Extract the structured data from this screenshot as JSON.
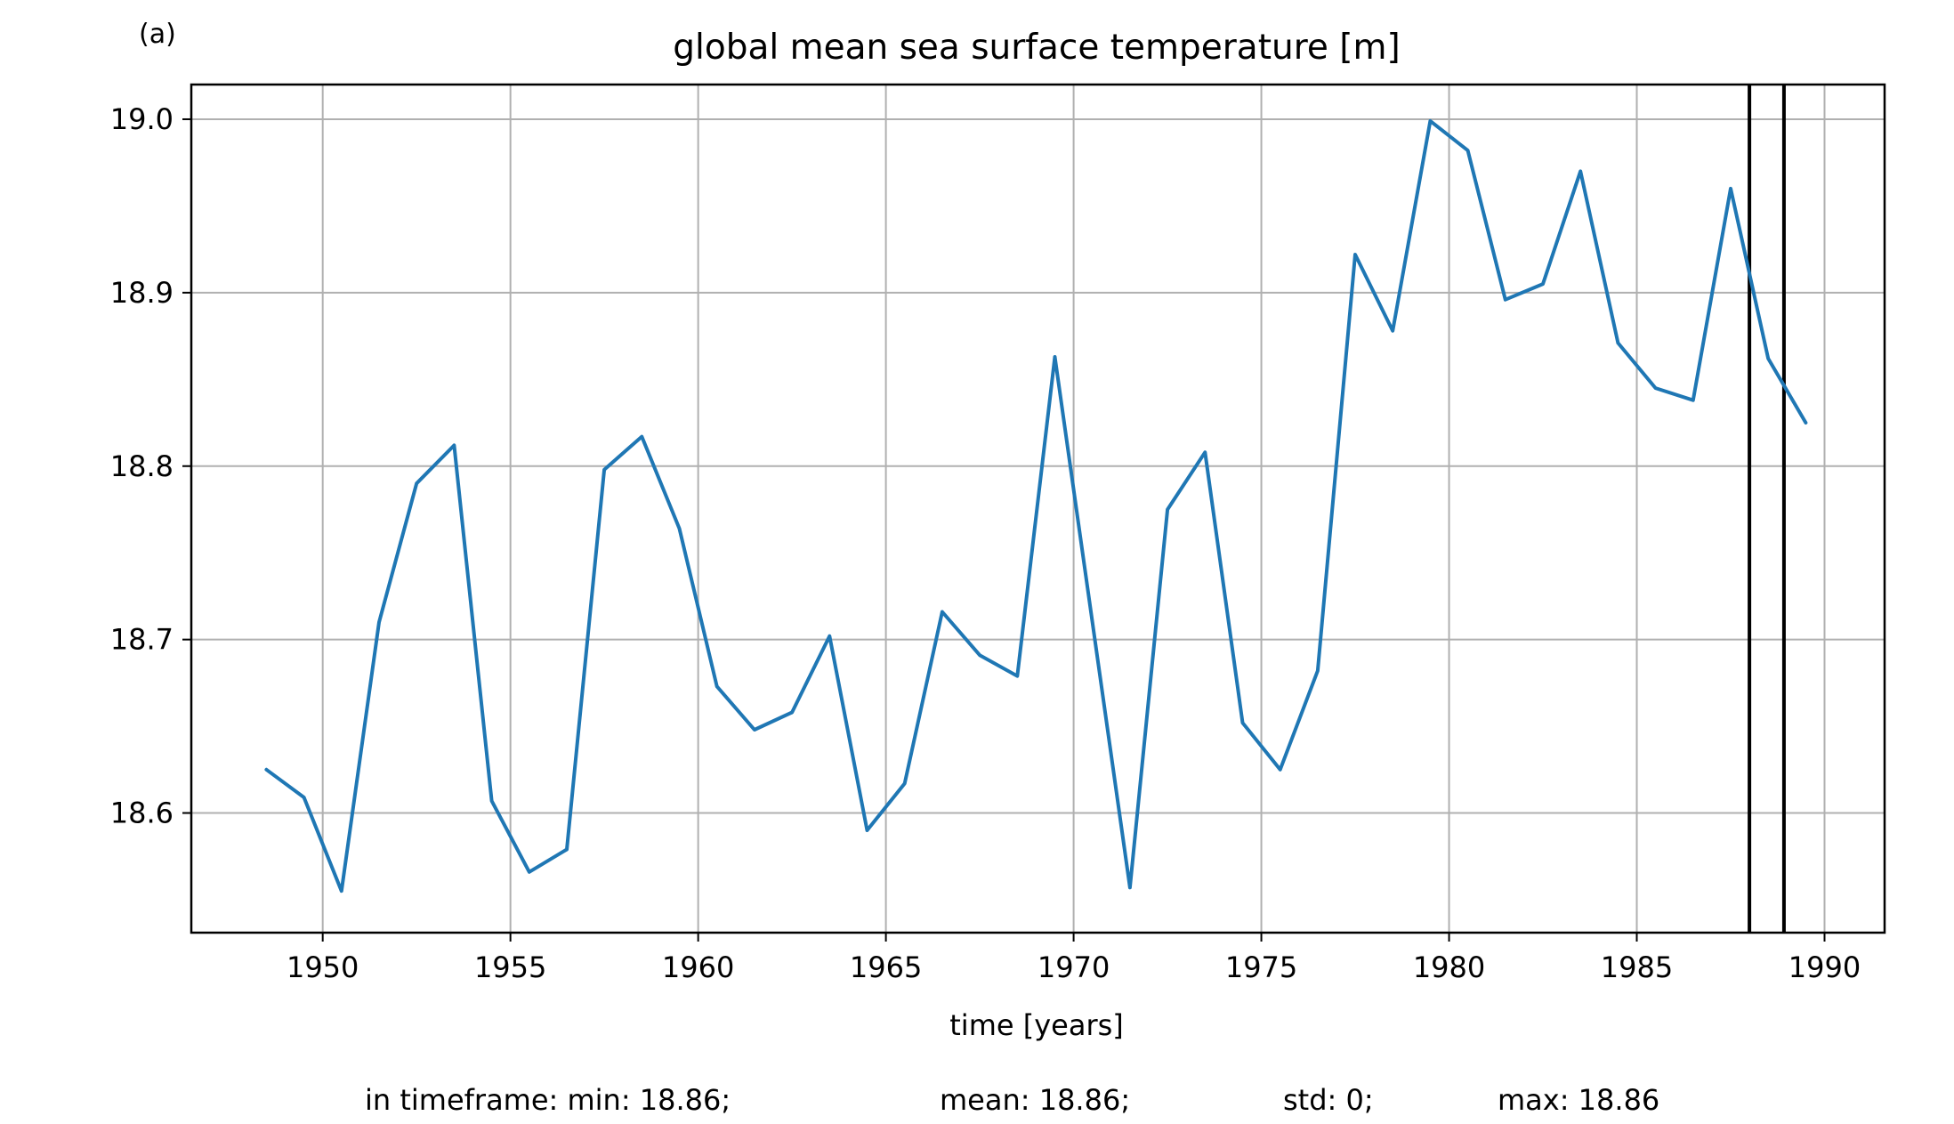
{
  "panel_label": "(a)",
  "stats": {
    "min": "in timeframe: min: 18.86;",
    "mean": "mean: 18.86;",
    "std": "std: 0;",
    "max": "max: 18.86"
  },
  "chart_data": {
    "type": "line",
    "title": "global mean sea surface temperature [m]",
    "xlabel": "time [years]",
    "ylabel": "",
    "xlim": [
      1946.5,
      1991.6
    ],
    "ylim": [
      18.531,
      19.02
    ],
    "xticks": [
      1950,
      1955,
      1960,
      1965,
      1970,
      1975,
      1980,
      1985,
      1990
    ],
    "yticks": [
      18.6,
      18.7,
      18.8,
      18.9,
      19.0
    ],
    "ytick_labels": [
      "18.6",
      "18.7",
      "18.8",
      "18.9",
      "19.0"
    ],
    "grid": true,
    "line_color": "#1f77b4",
    "series": [
      {
        "x": [
          1948.5,
          1949.5,
          1950.5,
          1951.5,
          1952.5,
          1953.5,
          1954.5,
          1955.5,
          1956.5,
          1957.5,
          1958.5,
          1959.5,
          1960.5,
          1961.5,
          1962.5,
          1963.5,
          1964.5,
          1965.5,
          1966.5,
          1967.5,
          1968.5,
          1969.5,
          1970.5,
          1971.5,
          1972.5,
          1973.5,
          1974.5,
          1975.5,
          1976.5,
          1977.5,
          1978.5,
          1979.5,
          1980.5,
          1981.5,
          1982.5,
          1983.5,
          1984.5,
          1985.5,
          1986.5,
          1987.5,
          1988.5,
          1989.5
        ],
        "values": [
          18.625,
          18.609,
          18.555,
          18.71,
          18.79,
          18.812,
          18.607,
          18.566,
          18.579,
          18.798,
          18.817,
          18.764,
          18.673,
          18.648,
          18.658,
          18.702,
          18.59,
          18.617,
          18.716,
          18.691,
          18.679,
          18.863,
          18.71,
          18.557,
          18.775,
          18.808,
          18.652,
          18.625,
          18.682,
          18.922,
          18.878,
          18.999,
          18.982,
          18.896,
          18.905,
          18.97,
          18.871,
          18.845,
          18.838,
          18.96,
          18.862,
          18.825
        ]
      }
    ],
    "vlines": [
      1988.0,
      1988.92
    ],
    "vline_color": "#000000"
  }
}
